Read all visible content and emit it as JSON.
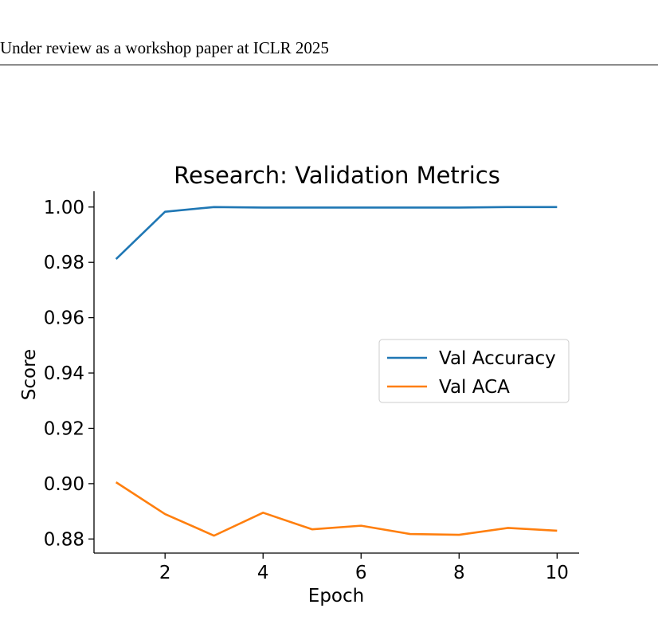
{
  "header": {
    "text": "Under review as a workshop paper at ICLR 2025"
  },
  "chart_data": {
    "type": "line",
    "title": "Research: Validation Metrics",
    "xlabel": "Epoch",
    "ylabel": "Score",
    "x": [
      1,
      2,
      3,
      4,
      5,
      6,
      7,
      8,
      9,
      10
    ],
    "xticks": [
      2,
      4,
      6,
      8,
      10
    ],
    "xtick_labels": [
      "2",
      "4",
      "6",
      "8",
      "10"
    ],
    "yticks": [
      0.88,
      0.9,
      0.92,
      0.94,
      0.96,
      0.98,
      1.0
    ],
    "ytick_labels": [
      "0.88",
      "0.90",
      "0.92",
      "0.94",
      "0.96",
      "0.98",
      "1.00"
    ],
    "xlim": [
      0.55,
      10.45
    ],
    "ylim": [
      0.8749,
      1.0057
    ],
    "grid": false,
    "legend_position": "center-right",
    "series": [
      {
        "name": "Val Accuracy",
        "color": "#1f77b4",
        "values": [
          0.9812,
          0.9983,
          1.0,
          0.9998,
          0.9998,
          0.9998,
          0.9998,
          0.9998,
          1.0,
          1.0
        ]
      },
      {
        "name": "Val ACA",
        "color": "#ff7f0e",
        "values": [
          0.9005,
          0.889,
          0.8812,
          0.8895,
          0.8835,
          0.8848,
          0.8818,
          0.8815,
          0.884,
          0.883
        ]
      }
    ]
  }
}
